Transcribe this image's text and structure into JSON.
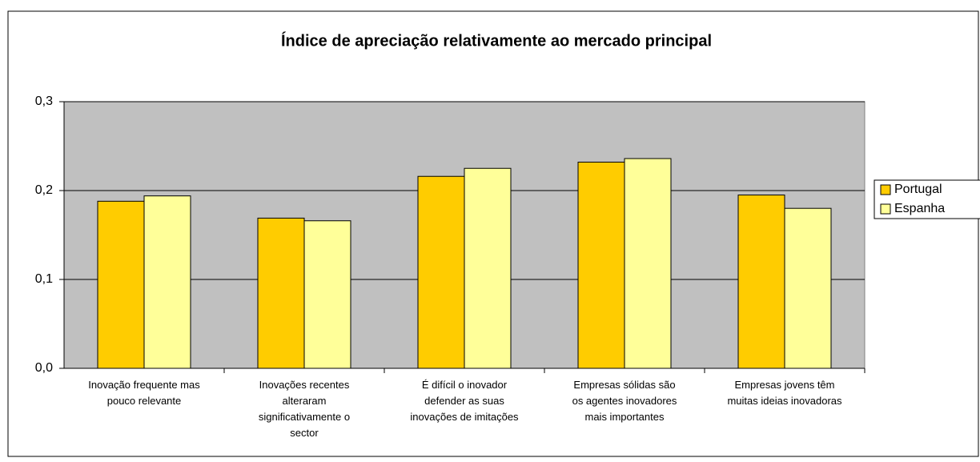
{
  "chart_data": {
    "type": "bar",
    "title": "Índice de apreciação relativamente ao mercado principal",
    "categories": [
      "Inovação frequente mas\npouco relevante",
      "Inovações recentes\nalteraram\nsignificativamente o\nsector",
      "É difícil o inovador\ndefender as suas\ninovações de imitações",
      "Empresas sólidas são\nos agentes inovadores\nmais importantes",
      "Empresas jovens têm\nmuitas ideias inovadoras"
    ],
    "series": [
      {
        "name": "Portugal",
        "color": "#ffcc00",
        "values": [
          0.188,
          0.169,
          0.216,
          0.232,
          0.195
        ]
      },
      {
        "name": "Espanha",
        "color": "#ffff99",
        "values": [
          0.194,
          0.166,
          0.225,
          0.236,
          0.18
        ]
      }
    ],
    "ylim": [
      0,
      0.3
    ],
    "yticks": [
      {
        "value": 0,
        "label": "0,0"
      },
      {
        "value": 0.1,
        "label": "0,1"
      },
      {
        "value": 0.2,
        "label": "0,2"
      },
      {
        "value": 0.3,
        "label": "0,3"
      }
    ],
    "grid": true,
    "legend": "right",
    "plot_background": "#c0c0c0"
  }
}
